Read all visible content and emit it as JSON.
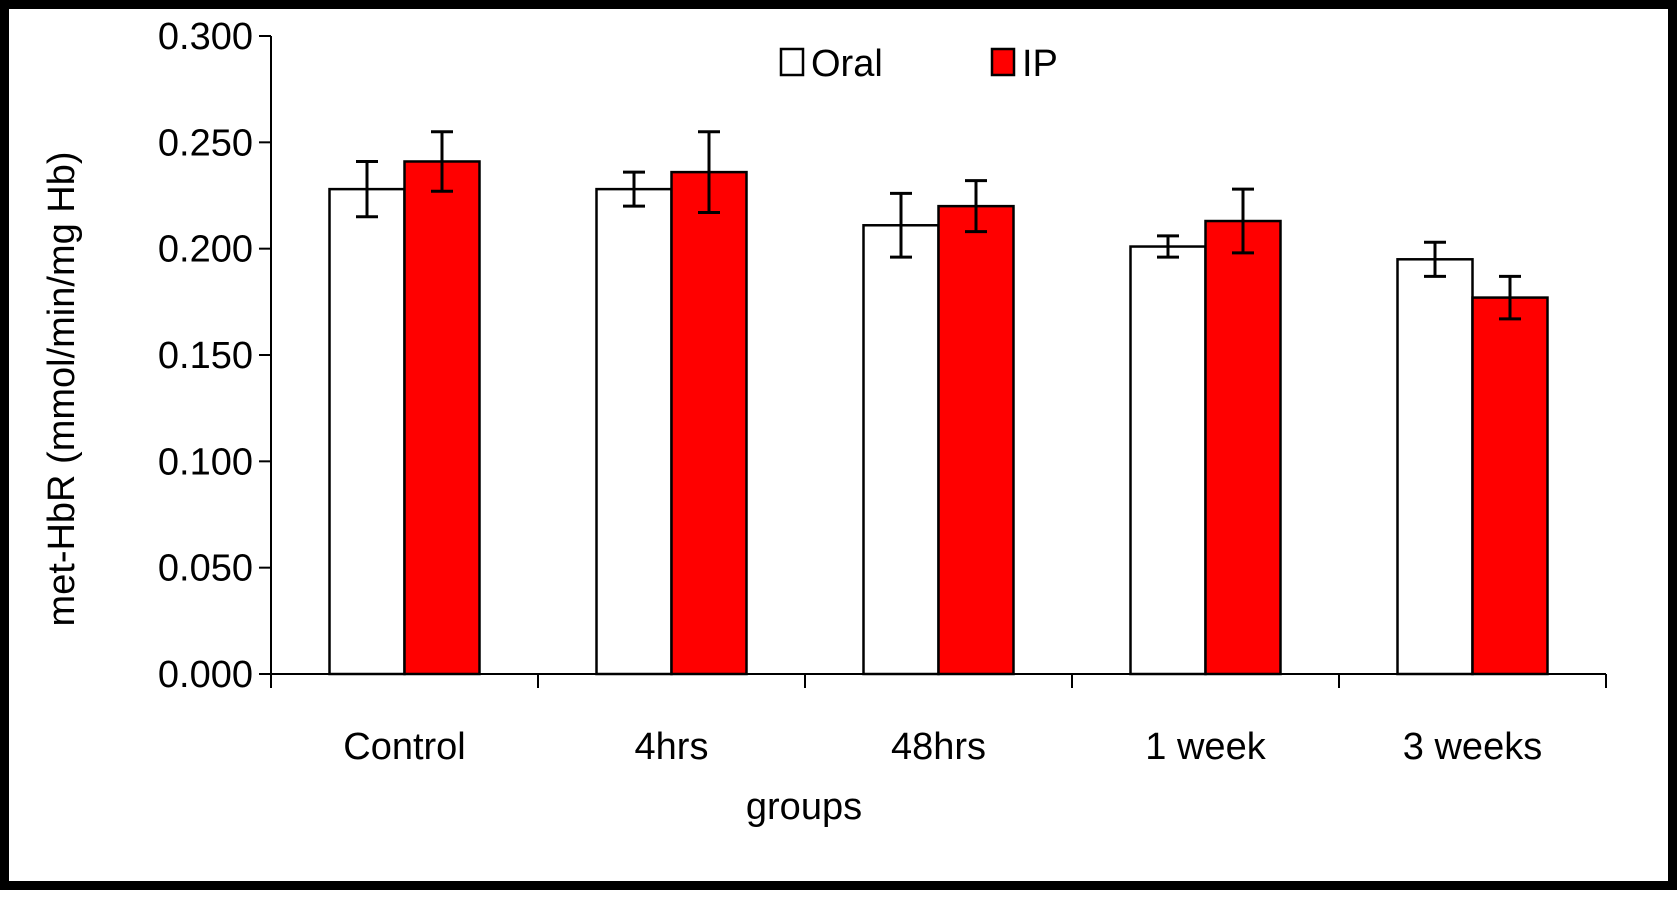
{
  "chart_data": {
    "type": "bar",
    "title": "",
    "xlabel": "groups",
    "ylabel": "met-HbR (mmol/min/mg Hb)",
    "ylim": [
      0,
      0.3
    ],
    "yticks": [
      "0.000",
      "0.050",
      "0.100",
      "0.150",
      "0.200",
      "0.250",
      "0.300"
    ],
    "ytick_values": [
      0,
      0.05,
      0.1,
      0.15,
      0.2,
      0.25,
      0.3
    ],
    "categories": [
      "Control",
      "4hrs",
      "48hrs",
      "1 week",
      "3 weeks"
    ],
    "series": [
      {
        "name": "Oral",
        "color": "#ffffff",
        "values": [
          0.228,
          0.228,
          0.211,
          0.201,
          0.195
        ],
        "errors": [
          0.013,
          0.008,
          0.015,
          0.005,
          0.008
        ]
      },
      {
        "name": "IP",
        "color": "#ff0000",
        "values": [
          0.241,
          0.236,
          0.22,
          0.213,
          0.177
        ],
        "errors": [
          0.014,
          0.019,
          0.012,
          0.015,
          0.01
        ]
      }
    ],
    "legend_position": "top-center",
    "grid": false
  }
}
